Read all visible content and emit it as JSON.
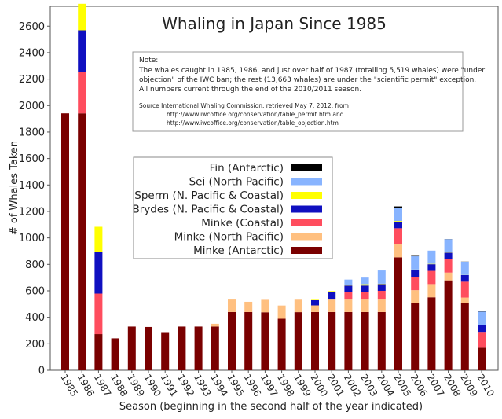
{
  "chart_data": {
    "type": "bar",
    "stacked": true,
    "title": "Whaling in Japan Since 1985",
    "xlabel": "Season (beginning in the second half of the year indicated)",
    "ylabel": "# of Whales Taken",
    "ylim": [
      0,
      2750
    ],
    "yticks": [
      0,
      200,
      400,
      600,
      800,
      1000,
      1200,
      1400,
      1600,
      1800,
      2000,
      2200,
      2400,
      2600
    ],
    "grid": false,
    "legend_position": "center-left",
    "categories": [
      "1985",
      "1986",
      "1987",
      "1988",
      "1989",
      "1990",
      "1991",
      "1992",
      "1993",
      "1994",
      "1995",
      "1996",
      "1997",
      "1998",
      "1999",
      "2000",
      "2001",
      "2002",
      "2003",
      "2004",
      "2005",
      "2006",
      "2007",
      "2008",
      "2009",
      "2010"
    ],
    "series": [
      {
        "name": "Minke (Antarctic)",
        "color": "#7a0000",
        "values": [
          1941,
          1941,
          273,
          241,
          330,
          327,
          288,
          330,
          330,
          330,
          440,
          440,
          438,
          389,
          439,
          440,
          440,
          440,
          440,
          440,
          853,
          505,
          551,
          679,
          506,
          170
        ]
      },
      {
        "name": "Minke (North Pacific)",
        "color": "#ffc080",
        "values": [
          0,
          0,
          0,
          0,
          0,
          0,
          0,
          0,
          0,
          21,
          100,
          77,
          100,
          100,
          100,
          50,
          100,
          100,
          100,
          100,
          100,
          100,
          100,
          59,
          43,
          0
        ]
      },
      {
        "name": "Minke (Coastal)",
        "color": "#ff4d5e",
        "values": [
          0,
          311,
          306,
          0,
          0,
          0,
          0,
          0,
          0,
          0,
          0,
          0,
          0,
          0,
          0,
          0,
          0,
          50,
          50,
          60,
          120,
          100,
          100,
          100,
          120,
          120
        ]
      },
      {
        "name": "Brydes (N. Pacific & Coastal)",
        "color": "#1010c0",
        "values": [
          0,
          317,
          317,
          0,
          0,
          0,
          0,
          0,
          0,
          0,
          0,
          0,
          0,
          0,
          0,
          43,
          50,
          50,
          50,
          51,
          50,
          50,
          50,
          50,
          50,
          50
        ]
      },
      {
        "name": "Sperm (N. Pacific & Coastal)",
        "color": "#ffff00",
        "values": [
          0,
          200,
          188,
          0,
          0,
          0,
          0,
          0,
          0,
          0,
          0,
          0,
          0,
          0,
          0,
          5,
          8,
          5,
          10,
          3,
          5,
          6,
          3,
          2,
          1,
          3
        ]
      },
      {
        "name": "Sei (North Pacific)",
        "color": "#88b4ff",
        "values": [
          0,
          0,
          0,
          0,
          0,
          0,
          0,
          0,
          0,
          0,
          0,
          0,
          0,
          0,
          0,
          0,
          0,
          40,
          50,
          100,
          100,
          100,
          100,
          100,
          100,
          100
        ]
      },
      {
        "name": "Fin (Antarctic)",
        "color": "#000000",
        "values": [
          0,
          0,
          0,
          0,
          0,
          0,
          0,
          0,
          0,
          0,
          0,
          0,
          0,
          0,
          0,
          0,
          0,
          0,
          0,
          0,
          10,
          3,
          0,
          1,
          1,
          2
        ]
      }
    ],
    "note": {
      "heading": "Note:",
      "lines": [
        "The whales caught in 1985, 1986, and just over half of 1987 (totalling 5,519 whales) were \"under",
        "objection\" of the IWC ban; the rest (13,663 whales) are under the \"scientific permit\" exception.",
        "All numbers current through the end of the 2010/2011 season."
      ],
      "source_lines": [
        "Source   International Whaling Commission. retrieved May 7, 2012, from",
        "http://www.iwcoffice.org/conservation/table_permit.htm  and",
        "http://www.iwcoffice.org/conservation/table_objection.htm"
      ]
    },
    "legend_order": [
      "Fin (Antarctic)",
      "Sei (North Pacific)",
      "Sperm (N. Pacific & Coastal)",
      "Brydes (N. Pacific & Coastal)",
      "Minke (Coastal)",
      "Minke (North Pacific)",
      "Minke (Antarctic)"
    ]
  }
}
